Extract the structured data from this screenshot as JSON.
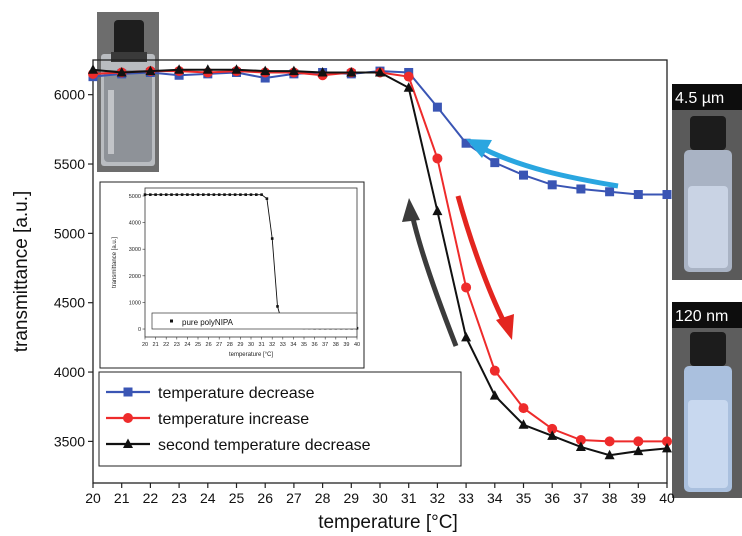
{
  "chart_data": {
    "type": "line",
    "xlabel": "temperature [°C]",
    "ylabel": "transmittance [a.u.]",
    "xlim": [
      20,
      40
    ],
    "ylim": [
      3200,
      6250
    ],
    "xticks": [
      20,
      21,
      22,
      23,
      24,
      25,
      26,
      27,
      28,
      29,
      30,
      31,
      32,
      33,
      34,
      35,
      36,
      37,
      38,
      39,
      40
    ],
    "yticks": [
      3500,
      4000,
      4500,
      5000,
      5500,
      6000
    ],
    "legend_position": "bottom-left",
    "series": [
      {
        "name": "temperature decrease",
        "color": "#3a55b4",
        "marker": "square",
        "x": [
          20,
          21,
          22,
          23,
          24,
          25,
          26,
          27,
          28,
          29,
          30,
          31,
          32,
          33,
          34,
          35,
          36,
          37,
          38,
          39,
          40
        ],
        "y": [
          6130,
          6150,
          6160,
          6140,
          6150,
          6160,
          6120,
          6150,
          6160,
          6150,
          6170,
          6160,
          5910,
          5650,
          5510,
          5420,
          5350,
          5320,
          5300,
          5280,
          5280
        ]
      },
      {
        "name": "temperature increase",
        "color": "#ee2b2b",
        "marker": "circle",
        "x": [
          20,
          21,
          22,
          23,
          24,
          25,
          26,
          27,
          28,
          29,
          30,
          31,
          32,
          33,
          34,
          35,
          36,
          37,
          38,
          39,
          40
        ],
        "y": [
          6150,
          6160,
          6170,
          6170,
          6160,
          6170,
          6160,
          6160,
          6140,
          6160,
          6160,
          6130,
          5540,
          4610,
          4010,
          3740,
          3590,
          3510,
          3500,
          3500,
          3500
        ]
      },
      {
        "name": "second temperature decrease",
        "color": "#111111",
        "marker": "triangle",
        "x": [
          20,
          21,
          22,
          23,
          24,
          25,
          26,
          27,
          28,
          29,
          30,
          31,
          32,
          33,
          34,
          35,
          36,
          37,
          38,
          39,
          40
        ],
        "y": [
          6180,
          6160,
          6170,
          6180,
          6180,
          6180,
          6170,
          6170,
          6160,
          6160,
          6160,
          6050,
          5160,
          4250,
          3830,
          3620,
          3540,
          3460,
          3400,
          3430,
          3450
        ]
      }
    ],
    "inset": {
      "xlabel": "temperature [°C]",
      "ylabel": "transmittance [a.u.]",
      "xlim": [
        20,
        40
      ],
      "ylim": [
        -300,
        5300
      ],
      "xticks": [
        20,
        21,
        22,
        23,
        24,
        25,
        26,
        27,
        28,
        29,
        30,
        31,
        32,
        33,
        34,
        35,
        36,
        37,
        38,
        39,
        40
      ],
      "yticks": [
        0,
        1000,
        2000,
        3000,
        4000,
        5000
      ],
      "series_name": "pure polyNIPA",
      "x": [
        20,
        20.5,
        21,
        21.5,
        22,
        22.5,
        23,
        23.5,
        24,
        24.5,
        25,
        25.5,
        26,
        26.5,
        27,
        27.5,
        28,
        28.5,
        29,
        29.5,
        30,
        30.5,
        31,
        31.5,
        32,
        32.5,
        33,
        33.5,
        34,
        34.5,
        35,
        35.5,
        36,
        36.5,
        37,
        37.5,
        38,
        38.5,
        39,
        39.5,
        40
      ],
      "y": [
        5050,
        5050,
        5050,
        5050,
        5050,
        5050,
        5050,
        5050,
        5050,
        5050,
        5050,
        5050,
        5050,
        5050,
        5050,
        5050,
        5050,
        5050,
        5050,
        5050,
        5050,
        5050,
        5050,
        4900,
        3400,
        850,
        150,
        80,
        60,
        50,
        40,
        40,
        30,
        30,
        30,
        30,
        30,
        30,
        30,
        30,
        30
      ]
    },
    "photo_labels": [
      "4.5 µm",
      "120 nm"
    ]
  }
}
